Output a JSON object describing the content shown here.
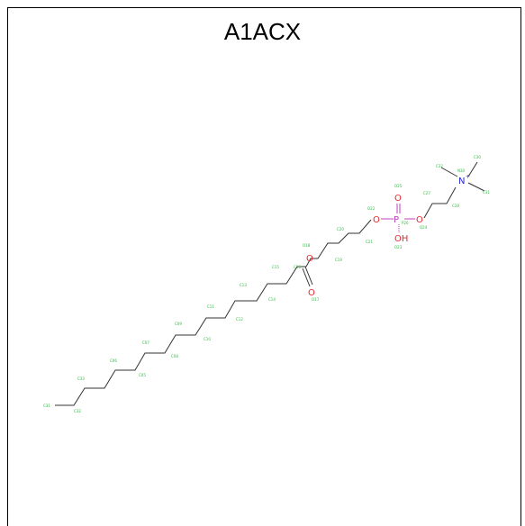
{
  "title": "A1ACX",
  "colors": {
    "bond": "#333333",
    "carbon_label": "#3cb44b",
    "oxygen": "#e8262a",
    "phosphorus": "#c040c0",
    "nitrogen": "#2222d0",
    "frame": "#000000"
  },
  "atoms": {
    "O": "O",
    "P": "P",
    "OH": "OH",
    "N": "N"
  },
  "charge": "+",
  "carbon_labels": [
    "C01",
    "C02",
    "C03",
    "C04",
    "C05",
    "C06",
    "C07",
    "C08",
    "C09",
    "C10",
    "C11",
    "C12",
    "C13",
    "C14",
    "C15",
    "C16",
    "C17",
    "C18",
    "C19",
    "C20",
    "C21",
    "C22",
    "C23",
    "C24",
    "C25",
    "C26",
    "C27",
    "C28",
    "C29",
    "C30",
    "C31",
    "C32",
    "C33"
  ],
  "other_labels": [
    "O17",
    "O18",
    "O22",
    "O23",
    "O24",
    "O25",
    "O26",
    "N30",
    "P26"
  ]
}
